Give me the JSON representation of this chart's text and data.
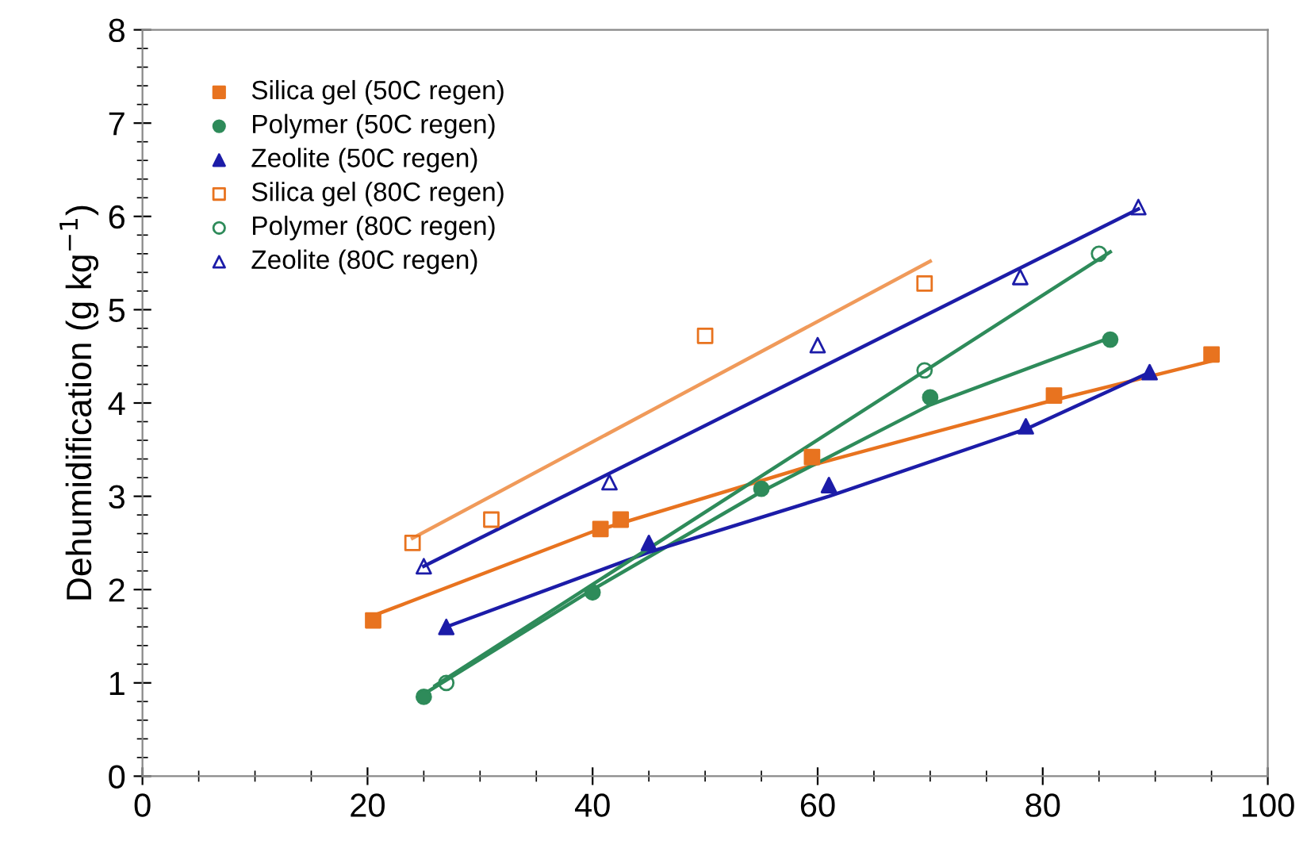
{
  "chart_data": {
    "type": "scatter",
    "ylabel": "Dehumidification (g kg$^{−1}$)",
    "xlim": [
      0,
      100
    ],
    "ylim": [
      0,
      8
    ],
    "xticks": [
      0,
      20,
      40,
      60,
      80,
      100
    ],
    "yticks": [
      0,
      1,
      2,
      3,
      4,
      5,
      6,
      7,
      8
    ],
    "grid": false,
    "legend": "top left",
    "series": [
      {
        "name": "Silica gel (50C regen)",
        "color": "#e8731f",
        "marker": "square",
        "x": [
          20.5,
          40.7,
          42.5,
          59.5,
          81,
          95
        ],
        "values": [
          1.67,
          2.65,
          2.75,
          3.42,
          4.08,
          4.52
        ]
      },
      {
        "name": "Polymer (50C regen)",
        "color": "#2e8b5a",
        "marker": "circle",
        "x": [
          25,
          40,
          55,
          70,
          86
        ],
        "values": [
          0.85,
          1.97,
          3.08,
          4.06,
          4.68
        ]
      },
      {
        "name": "Zeolite (50C regen)",
        "color": "#1c1ca8",
        "marker": "triangle",
        "x": [
          27,
          45,
          61,
          78.5,
          89.5
        ],
        "values": [
          1.6,
          2.5,
          3.12,
          3.75,
          4.33
        ]
      },
      {
        "name": "Silica gel (80C regen)",
        "color": "#e8731f",
        "marker": "square",
        "x": [
          24,
          31,
          50,
          69.5
        ],
        "values": [
          2.5,
          2.75,
          4.72,
          5.28
        ]
      },
      {
        "name": "Polymer (80C regen)",
        "color": "#2e8b5a",
        "marker": "circle",
        "x": [
          27,
          69.5,
          85
        ],
        "values": [
          1.0,
          4.35,
          5.6
        ]
      },
      {
        "name": "Zeolite (80C regen)",
        "color": "#1c1ca8",
        "marker": "triangle",
        "x": [
          25,
          41.5,
          60,
          78,
          88.5
        ],
        "values": [
          2.25,
          3.15,
          4.62,
          5.35,
          6.1
        ]
      },
      {
        "type": "line",
        "color": "#e8731f",
        "x": [
          20.5,
          40,
          60,
          80,
          95
        ],
        "values": [
          1.72,
          2.62,
          3.35,
          4.0,
          4.45
        ]
      },
      {
        "type": "line",
        "color": "#2e8b5a",
        "x": [
          25,
          40,
          55,
          70,
          86
        ],
        "values": [
          0.88,
          2.0,
          3.05,
          3.98,
          4.7
        ]
      },
      {
        "type": "line",
        "color": "#1c1ca8",
        "x": [
          27,
          45,
          61,
          78.5,
          89
        ],
        "values": [
          1.6,
          2.4,
          3.0,
          3.72,
          4.3
        ]
      },
      {
        "type": "line",
        "color": "#f09a5a",
        "x": [
          24,
          70
        ],
        "values": [
          2.55,
          5.52
        ]
      },
      {
        "type": "line",
        "color": "#2e8b5a",
        "x": [
          26,
          86
        ],
        "values": [
          0.97,
          5.62
        ]
      },
      {
        "type": "line",
        "color": "#1c1ca8",
        "x": [
          25,
          88.5
        ],
        "values": [
          2.25,
          6.08
        ]
      }
    ]
  }
}
